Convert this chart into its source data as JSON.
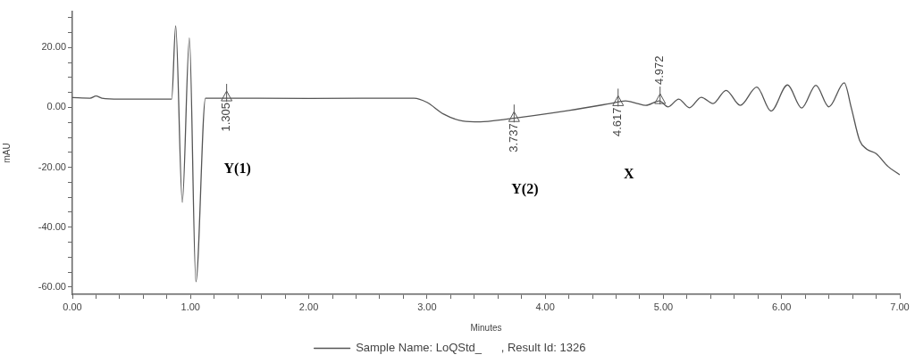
{
  "chart_data": {
    "type": "line",
    "xlabel": "Minutes",
    "ylabel": "mAU",
    "legend": "bottom",
    "grid": false,
    "marker": "none",
    "xlim": [
      0,
      7
    ],
    "ylim": [
      -62.4,
      32
    ],
    "xticks": [
      {
        "value": 0,
        "label": "0.00"
      },
      {
        "value": 0.2,
        "label": null
      },
      {
        "value": 0.4,
        "label": null
      },
      {
        "value": 0.6,
        "label": null
      },
      {
        "value": 0.8,
        "label": null
      },
      {
        "value": 1,
        "label": "1.00"
      },
      {
        "value": 1.2,
        "label": null
      },
      {
        "value": 1.4,
        "label": null
      },
      {
        "value": 1.6,
        "label": null
      },
      {
        "value": 1.8,
        "label": null
      },
      {
        "value": 2,
        "label": "2.00"
      },
      {
        "value": 2.2,
        "label": null
      },
      {
        "value": 2.4,
        "label": null
      },
      {
        "value": 2.6,
        "label": null
      },
      {
        "value": 2.8,
        "label": null
      },
      {
        "value": 3,
        "label": "3.00"
      },
      {
        "value": 3.2,
        "label": null
      },
      {
        "value": 3.4,
        "label": null
      },
      {
        "value": 3.6,
        "label": null
      },
      {
        "value": 3.8,
        "label": null
      },
      {
        "value": 4,
        "label": "4.00"
      },
      {
        "value": 4.2,
        "label": null
      },
      {
        "value": 4.4,
        "label": null
      },
      {
        "value": 4.6,
        "label": null
      },
      {
        "value": 4.8,
        "label": null
      },
      {
        "value": 5,
        "label": "5.00"
      },
      {
        "value": 5.2,
        "label": null
      },
      {
        "value": 5.4,
        "label": null
      },
      {
        "value": 5.6,
        "label": null
      },
      {
        "value": 5.8,
        "label": null
      },
      {
        "value": 6,
        "label": "6.00"
      },
      {
        "value": 6.2,
        "label": null
      },
      {
        "value": 6.4,
        "label": null
      },
      {
        "value": 6.6,
        "label": null
      },
      {
        "value": 6.8,
        "label": null
      },
      {
        "value": 7,
        "label": "7.00"
      }
    ],
    "yticks": [
      {
        "value": -60,
        "label": "-60.00"
      },
      {
        "value": -55,
        "label": null
      },
      {
        "value": -50,
        "label": null
      },
      {
        "value": -45,
        "label": null
      },
      {
        "value": -40,
        "label": "-40.00"
      },
      {
        "value": -35,
        "label": null
      },
      {
        "value": -30,
        "label": null
      },
      {
        "value": -25,
        "label": null
      },
      {
        "value": -20,
        "label": "-20.00"
      },
      {
        "value": -15,
        "label": null
      },
      {
        "value": -10,
        "label": null
      },
      {
        "value": -5,
        "label": null
      },
      {
        "value": 0,
        "label": "0.00"
      },
      {
        "value": 5,
        "label": null
      },
      {
        "value": 10,
        "label": null
      },
      {
        "value": 15,
        "label": null
      },
      {
        "value": 20,
        "label": "20.00"
      },
      {
        "value": 25,
        "label": null
      },
      {
        "value": 30,
        "label": null
      }
    ],
    "series": [
      {
        "name": "Sample Name: LoQStd_      , Result Id: 1326",
        "color": "#555555",
        "x": [
          0,
          0.15,
          0.2,
          0.25,
          0.4,
          0.84,
          0.874,
          0.93,
          0.99,
          1.045,
          1.126,
          1.3,
          2.0,
          2.89,
          3.0,
          3.14,
          3.3,
          3.45,
          3.67,
          4.2,
          4.55,
          4.68,
          4.78,
          4.85,
          4.966,
          5.04,
          5.13,
          5.22,
          5.32,
          5.42,
          5.53,
          5.65,
          5.79,
          5.91,
          6.05,
          6.17,
          6.29,
          6.4,
          6.53,
          6.59,
          6.66,
          6.72,
          6.8,
          6.9,
          7.0
        ],
        "values": [
          3.3,
          3.1,
          3.8,
          3.1,
          2.8,
          2.8,
          27.3,
          -31.7,
          23.2,
          -58.2,
          3.1,
          3.1,
          3.0,
          3.1,
          1.7,
          -2.2,
          -4.5,
          -4.8,
          -3.9,
          -1.0,
          1.3,
          2.2,
          1.3,
          0.7,
          2.2,
          0.2,
          2.8,
          -0.1,
          3.4,
          1.3,
          5.7,
          0.7,
          6.8,
          -1.2,
          7.5,
          -0.2,
          7.4,
          0.2,
          8.2,
          -0.2,
          -11,
          -13.9,
          -15.4,
          -19.7,
          -22.5
        ]
      }
    ],
    "annotations": [
      {
        "text": "1.305",
        "x": 1.305,
        "y": 3.1
      },
      {
        "text": "3.737",
        "x": 3.737,
        "y": -3.8
      },
      {
        "text": "4.617",
        "x": 4.617,
        "y": 1.5
      },
      {
        "text": "4.972",
        "x": 4.972,
        "y": 2.2
      },
      "Y(1)",
      "Y(2)",
      "X"
    ]
  }
}
